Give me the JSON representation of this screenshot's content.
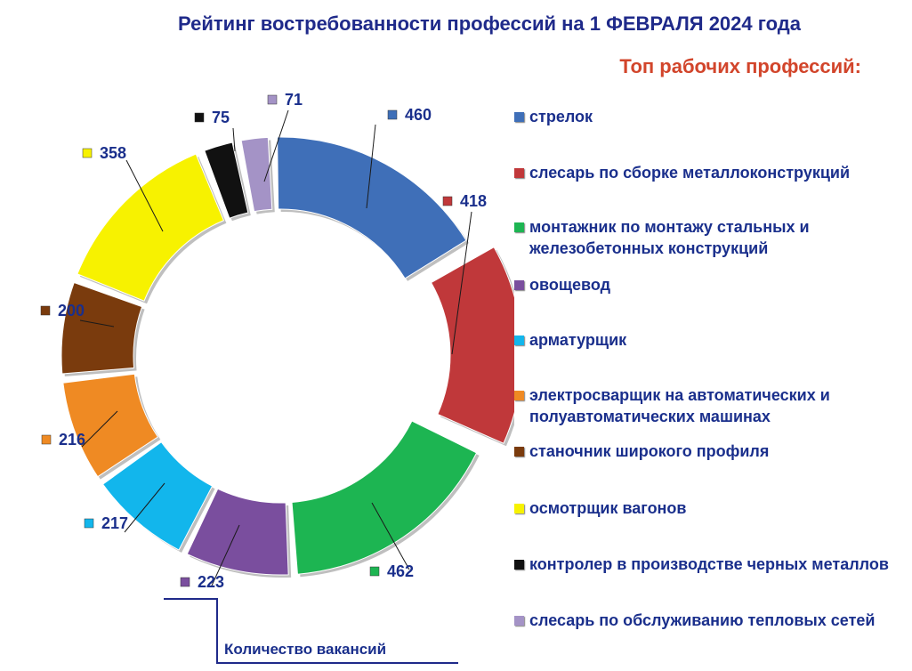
{
  "chart_data": {
    "type": "doughnut",
    "title": "Рейтинг востребованности профессий на 1 ФЕВРАЛЯ 2024 года",
    "subtitle": "Топ рабочих профессий:",
    "quantity_label": "Количество вакансий",
    "series": [
      {
        "name": "Количество вакансий",
        "categories": [
          "стрелок",
          "слесарь по сборке металлоконструкций",
          "монтажник по монтажу стальных и железобетонных конструкций",
          "овощевод",
          "арматурщик",
          "электросварщик на автоматических и полуавтоматических машинах",
          "станочник широкого профиля",
          "осмотрщик вагонов",
          "контролер в производстве черных металлов",
          "слесарь по обслуживанию тепловых сетей"
        ],
        "values": [
          460,
          418,
          462,
          223,
          217,
          216,
          200,
          358,
          75,
          71
        ]
      }
    ],
    "colors": [
      "#3f6fb8",
      "#c0383a",
      "#1db552",
      "#7a4e9e",
      "#12b6ec",
      "#ef8a23",
      "#7a3b0d",
      "#f7f200",
      "#111111",
      "#a493c6"
    ],
    "legend_position": "right"
  }
}
